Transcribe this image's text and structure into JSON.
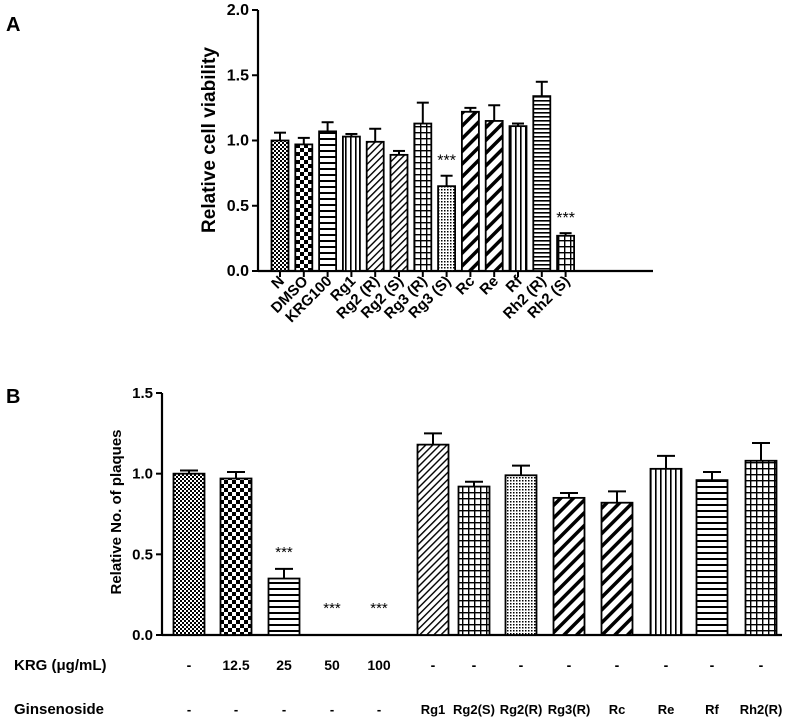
{
  "panel_labels": {
    "a": "A",
    "b": "B"
  },
  "chart_data": [
    {
      "type": "bar",
      "panel": "A",
      "title": "",
      "xlabel": "",
      "ylabel": "Relative cell viability",
      "ylim": [
        0,
        2.0
      ],
      "yticks": [
        "0.0",
        "0.5",
        "1.0",
        "1.5",
        "2.0"
      ],
      "ytick_values": [
        0,
        0.5,
        1.0,
        1.5,
        2.0
      ],
      "categories": [
        "N",
        "DMSO",
        "KRG100",
        "Rg1",
        "Rg2 (R)",
        "Rg2 (S)",
        "Rg3 (R)",
        "Rg3 (S)",
        "Rc",
        "Re",
        "Rf",
        "Rh2 (R)",
        "Rh2 (S)"
      ],
      "values": [
        1.0,
        0.97,
        1.07,
        1.03,
        0.99,
        0.89,
        1.13,
        0.65,
        1.22,
        1.15,
        1.11,
        1.34,
        0.27
      ],
      "errors": [
        0.06,
        0.05,
        0.07,
        0.02,
        0.1,
        0.03,
        0.16,
        0.08,
        0.03,
        0.12,
        0.02,
        0.11,
        0.02
      ],
      "patterns": [
        "dots",
        "checker",
        "hlines",
        "vlines",
        "diag-fine",
        "diag-fine",
        "grid",
        "dots-fine",
        "diag-thick",
        "diag-thick",
        "vlines",
        "hlines-dense",
        "grid"
      ],
      "annotations": [
        "",
        "",
        "",
        "",
        "",
        "",
        "",
        "***",
        "",
        "",
        "",
        "",
        "***"
      ]
    },
    {
      "type": "bar",
      "panel": "B",
      "title": "",
      "xlabel": "",
      "ylabel": "Relative No. of plaques",
      "ylim": [
        0,
        1.5
      ],
      "yticks": [
        "0.0",
        "0.5",
        "1.0",
        "1.5"
      ],
      "ytick_values": [
        0,
        0.5,
        1.0,
        1.5
      ],
      "row_labels": [
        "KRG (μg/mL)",
        "Ginsenoside"
      ],
      "krg": [
        "-",
        "12.5",
        "25",
        "50",
        "100",
        "-",
        "-",
        "-",
        "-",
        "-",
        "-",
        "-",
        "-"
      ],
      "ginsenoside": [
        "-",
        "-",
        "-",
        "-",
        "-",
        "Rg1",
        "Rg2(S)",
        "Rg2(R)",
        "Rg3(R)",
        "Rc",
        "Re",
        "Rf",
        "Rh2(R)"
      ],
      "values": [
        1.0,
        0.97,
        0.35,
        0,
        0,
        1.18,
        0.92,
        0.99,
        0.85,
        0.82,
        1.03,
        0.96,
        1.08
      ],
      "errors": [
        0.02,
        0.04,
        0.06,
        0,
        0,
        0.07,
        0.03,
        0.06,
        0.03,
        0.07,
        0.08,
        0.05,
        0.11
      ],
      "patterns": [
        "dots",
        "checker",
        "hlines",
        "none",
        "none",
        "diag-fine",
        "grid",
        "dots-fine",
        "diag-thick",
        "diag-thick",
        "vlines",
        "hlines",
        "grid"
      ],
      "annotations": [
        "",
        "",
        "***",
        "***",
        "***",
        "",
        "",
        "",
        "",
        "",
        "",
        "",
        ""
      ]
    }
  ]
}
